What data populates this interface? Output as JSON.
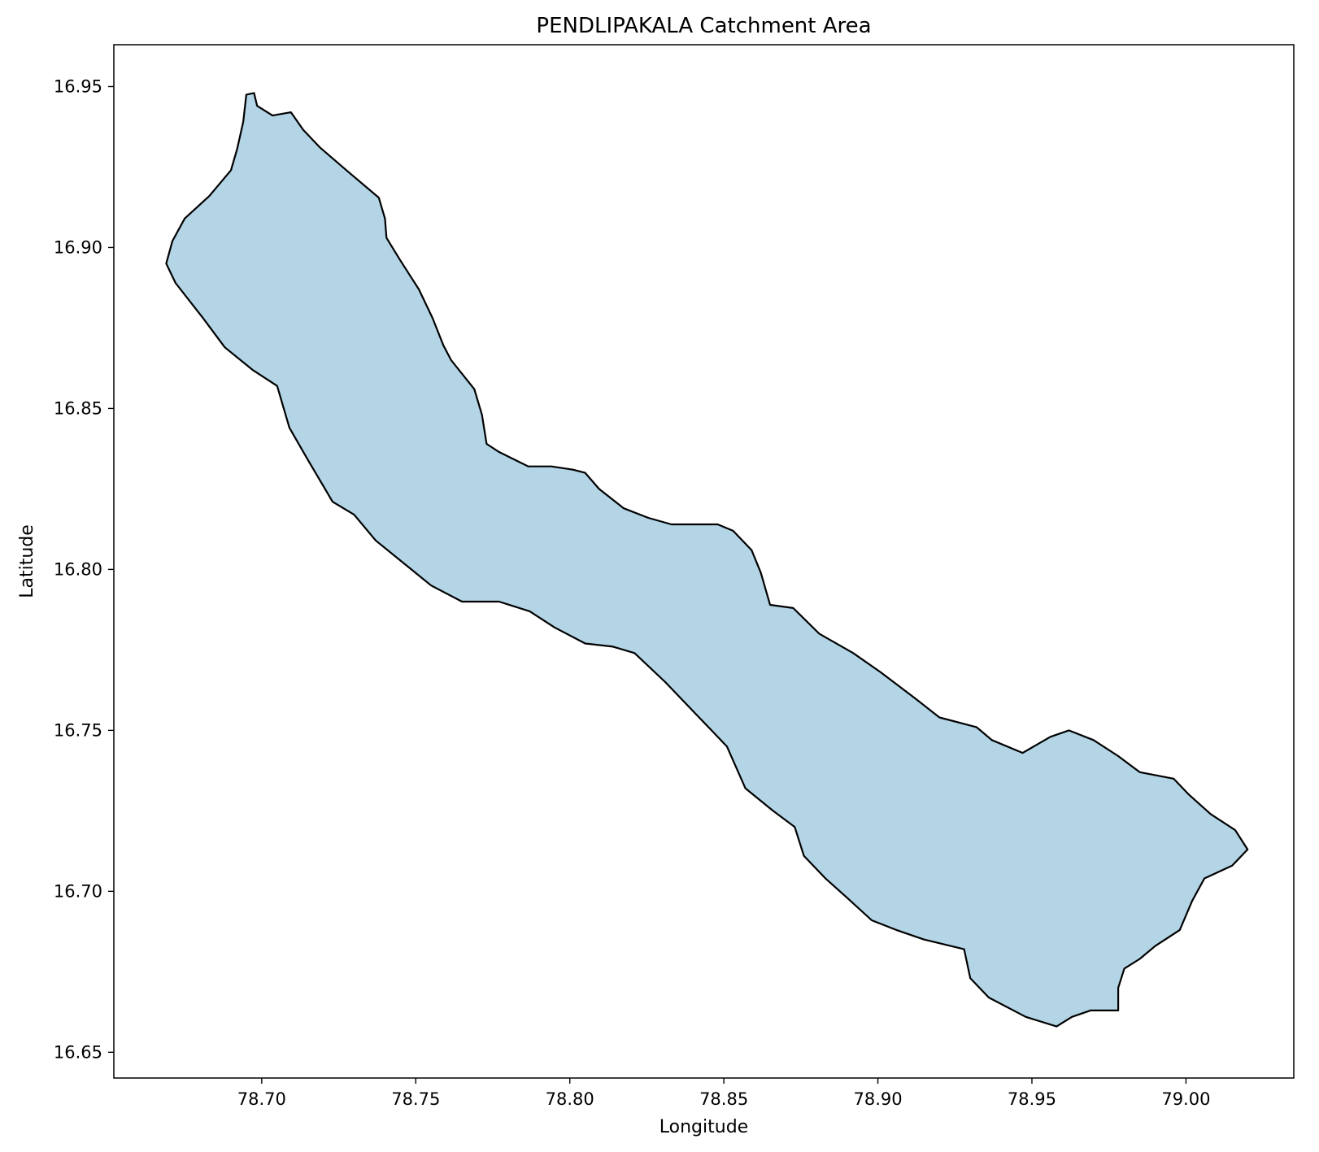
{
  "chart_data": {
    "type": "map",
    "title": "PENDLIPAKALA Catchment Area",
    "xlabel": "Longitude",
    "ylabel": "Latitude",
    "xlim": [
      78.652,
      79.035
    ],
    "ylim": [
      16.642,
      16.963
    ],
    "xticks": [
      {
        "value": 78.7,
        "label": "78.70"
      },
      {
        "value": 78.75,
        "label": "78.75"
      },
      {
        "value": 78.8,
        "label": "78.80"
      },
      {
        "value": 78.85,
        "label": "78.85"
      },
      {
        "value": 78.9,
        "label": "78.90"
      },
      {
        "value": 78.95,
        "label": "78.95"
      },
      {
        "value": 79.0,
        "label": "79.00"
      }
    ],
    "yticks": [
      {
        "value": 16.65,
        "label": "16.65"
      },
      {
        "value": 16.7,
        "label": "16.70"
      },
      {
        "value": 16.75,
        "label": "16.75"
      },
      {
        "value": 16.8,
        "label": "16.80"
      },
      {
        "value": 16.85,
        "label": "16.85"
      },
      {
        "value": 16.9,
        "label": "16.90"
      },
      {
        "value": 16.95,
        "label": "16.95"
      }
    ],
    "grid": false,
    "legend": "none",
    "catchment": {
      "fill": "#b3d5e6",
      "edge": "#000000",
      "boundary": [
        [
          78.695,
          16.9475
        ],
        [
          78.6975,
          16.948
        ],
        [
          78.6985,
          16.944
        ],
        [
          78.7035,
          16.941
        ],
        [
          78.7095,
          16.942
        ],
        [
          78.7135,
          16.9365
        ],
        [
          78.719,
          16.931
        ],
        [
          78.7275,
          16.924
        ],
        [
          78.738,
          16.9155
        ],
        [
          78.74,
          16.909
        ],
        [
          78.7405,
          16.903
        ],
        [
          78.745,
          16.896
        ],
        [
          78.751,
          16.887
        ],
        [
          78.7555,
          16.878
        ],
        [
          78.759,
          16.8695
        ],
        [
          78.7615,
          16.865
        ],
        [
          78.769,
          16.856
        ],
        [
          78.7715,
          16.848
        ],
        [
          78.773,
          16.839
        ],
        [
          78.777,
          16.8365
        ],
        [
          78.7865,
          16.832
        ],
        [
          78.794,
          16.832
        ],
        [
          78.801,
          16.831
        ],
        [
          78.805,
          16.83
        ],
        [
          78.8095,
          16.825
        ],
        [
          78.8175,
          16.819
        ],
        [
          78.8255,
          16.816
        ],
        [
          78.833,
          16.814
        ],
        [
          78.845,
          16.814
        ],
        [
          78.848,
          16.814
        ],
        [
          78.853,
          16.812
        ],
        [
          78.859,
          16.806
        ],
        [
          78.862,
          16.799
        ],
        [
          78.865,
          16.789
        ],
        [
          78.8725,
          16.788
        ],
        [
          78.881,
          16.78
        ],
        [
          78.892,
          16.774
        ],
        [
          78.901,
          16.768
        ],
        [
          78.912,
          16.76
        ],
        [
          78.92,
          16.754
        ],
        [
          78.932,
          16.751
        ],
        [
          78.937,
          16.747
        ],
        [
          78.947,
          16.743
        ],
        [
          78.956,
          16.748
        ],
        [
          78.962,
          16.75
        ],
        [
          78.97,
          16.747
        ],
        [
          78.978,
          16.742
        ],
        [
          78.985,
          16.737
        ],
        [
          78.996,
          16.735
        ],
        [
          79.001,
          16.73
        ],
        [
          79.008,
          16.724
        ],
        [
          79.016,
          16.719
        ],
        [
          79.02,
          16.713
        ],
        [
          79.015,
          16.708
        ],
        [
          79.006,
          16.704
        ],
        [
          79.002,
          16.697
        ],
        [
          78.998,
          16.688
        ],
        [
          78.99,
          16.683
        ],
        [
          78.985,
          16.679
        ],
        [
          78.98,
          16.676
        ],
        [
          78.978,
          16.67
        ],
        [
          78.978,
          16.663
        ],
        [
          78.969,
          16.663
        ],
        [
          78.963,
          16.661
        ],
        [
          78.958,
          16.658
        ],
        [
          78.948,
          16.661
        ],
        [
          78.936,
          16.667
        ],
        [
          78.93,
          16.673
        ],
        [
          78.928,
          16.682
        ],
        [
          78.915,
          16.685
        ],
        [
          78.906,
          16.688
        ],
        [
          78.898,
          16.691
        ],
        [
          78.89,
          16.698
        ],
        [
          78.883,
          16.704
        ],
        [
          78.876,
          16.711
        ],
        [
          78.873,
          16.72
        ],
        [
          78.866,
          16.725
        ],
        [
          78.857,
          16.732
        ],
        [
          78.851,
          16.745
        ],
        [
          78.846,
          16.75
        ],
        [
          78.841,
          16.755
        ],
        [
          78.831,
          16.765
        ],
        [
          78.821,
          16.774
        ],
        [
          78.814,
          16.776
        ],
        [
          78.805,
          16.777
        ],
        [
          78.795,
          16.782
        ],
        [
          78.787,
          16.787
        ],
        [
          78.777,
          16.79
        ],
        [
          78.765,
          16.79
        ],
        [
          78.755,
          16.795
        ],
        [
          78.746,
          16.802
        ],
        [
          78.737,
          16.809
        ],
        [
          78.73,
          16.817
        ],
        [
          78.723,
          16.821
        ],
        [
          78.715,
          16.834
        ],
        [
          78.709,
          16.844
        ],
        [
          78.705,
          16.857
        ],
        [
          78.697,
          16.862
        ],
        [
          78.688,
          16.869
        ],
        [
          78.681,
          16.878
        ],
        [
          78.672,
          16.889
        ],
        [
          78.669,
          16.895
        ],
        [
          78.671,
          16.902
        ],
        [
          78.675,
          16.909
        ],
        [
          78.683,
          16.916
        ],
        [
          78.69,
          16.924
        ],
        [
          78.692,
          16.9305
        ],
        [
          78.694,
          16.939
        ]
      ]
    }
  }
}
